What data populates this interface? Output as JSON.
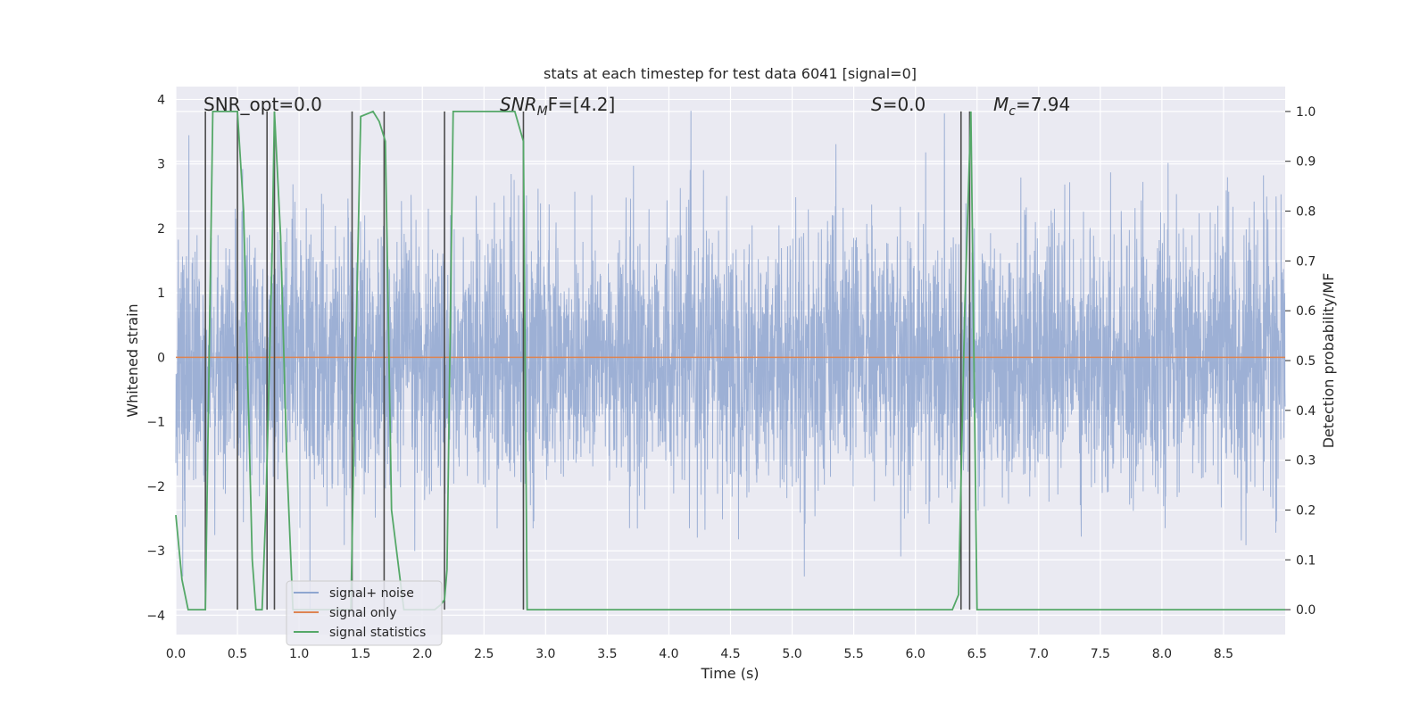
{
  "chart_data": {
    "type": "line",
    "title": "stats at each timestep for test data 6041 [signal=0]",
    "xlabel": "Time (s)",
    "ylabel_left": "Whitened strain",
    "ylabel_right": "Detection probability/MF",
    "xlim": [
      0.0,
      9.0
    ],
    "ylim_left": [
      -4.3,
      4.2
    ],
    "ylim_right": [
      -0.05,
      1.05
    ],
    "x_ticks": [
      "0.0",
      "0.5",
      "1.0",
      "1.5",
      "2.0",
      "2.5",
      "3.0",
      "3.5",
      "4.0",
      "4.5",
      "5.0",
      "5.5",
      "6.0",
      "6.5",
      "7.0",
      "7.5",
      "8.0",
      "8.5"
    ],
    "x_tick_values": [
      0.0,
      0.5,
      1.0,
      1.5,
      2.0,
      2.5,
      3.0,
      3.5,
      4.0,
      4.5,
      5.0,
      5.5,
      6.0,
      6.5,
      7.0,
      7.5,
      8.0,
      8.5
    ],
    "left_ticks": [
      "4",
      "3",
      "2",
      "1",
      "0",
      "−1",
      "−2",
      "−3",
      "−4"
    ],
    "left_tick_values": [
      4,
      3,
      2,
      1,
      0,
      -1,
      -2,
      -3,
      -4
    ],
    "right_ticks": [
      "1.0",
      "0.9",
      "0.8",
      "0.7",
      "0.6",
      "0.5",
      "0.4",
      "0.3",
      "0.2",
      "0.1",
      "0.0"
    ],
    "right_tick_values": [
      1.0,
      0.9,
      0.8,
      0.7,
      0.6,
      0.5,
      0.4,
      0.3,
      0.2,
      0.1,
      0.0
    ],
    "annotations": {
      "snr_opt": "SNR_opt=0.0",
      "snr_mf_main": "SNR",
      "snr_mf_sub": "M",
      "snr_mf_rest": "F=[4.2]",
      "s_main": "S",
      "s_rest": "=0.0",
      "mc_main": "M",
      "mc_sub": "c",
      "mc_rest": "=7.94"
    },
    "legend": {
      "position": "lower-left",
      "entries": [
        {
          "label": "signal+ noise",
          "color": "#8fa6d0"
        },
        {
          "label": "signal only",
          "color": "#dd8452"
        },
        {
          "label": "signal statistics",
          "color": "#55a868"
        }
      ]
    },
    "series": [
      {
        "name": "signal+ noise",
        "axis": "left",
        "color": "#8fa6d0",
        "generated": "whitened noise, std ~1.0, n=4500 samples over 0–9 s"
      },
      {
        "name": "signal only",
        "axis": "left",
        "color": "#dd8452",
        "x": [
          0.0,
          9.0
        ],
        "y": [
          0.0,
          0.0
        ]
      },
      {
        "name": "signal statistics",
        "axis": "right",
        "color": "#55a868",
        "x": [
          0.0,
          0.05,
          0.1,
          0.2,
          0.24,
          0.3,
          0.35,
          0.45,
          0.5,
          0.55,
          0.62,
          0.65,
          0.7,
          0.73,
          0.78,
          0.8,
          0.85,
          0.9,
          0.95,
          1.0,
          1.05,
          1.15,
          1.25,
          1.3,
          1.35,
          1.42,
          1.45,
          1.5,
          1.6,
          1.65,
          1.7,
          1.75,
          1.85,
          2.0,
          2.1,
          2.15,
          2.18,
          2.2,
          2.25,
          2.3,
          2.5,
          2.7,
          2.75,
          2.82,
          2.85,
          2.9,
          3.0,
          3.5,
          4.0,
          4.5,
          5.0,
          5.5,
          6.0,
          6.3,
          6.35,
          6.4,
          6.45,
          6.5,
          6.55,
          7.0,
          8.0,
          9.0
        ],
        "y": [
          0.19,
          0.06,
          0.0,
          0.0,
          0.0,
          1.0,
          1.0,
          1.0,
          1.0,
          0.8,
          0.1,
          0.0,
          0.0,
          0.2,
          0.7,
          1.0,
          0.75,
          0.3,
          0.0,
          0.0,
          0.0,
          0.0,
          0.0,
          0.0,
          0.0,
          0.0,
          0.4,
          0.99,
          1.0,
          0.98,
          0.94,
          0.2,
          0.0,
          0.0,
          0.0,
          0.01,
          0.02,
          0.08,
          1.0,
          1.0,
          1.0,
          1.0,
          1.0,
          0.94,
          0.0,
          0.0,
          0.0,
          0.0,
          0.0,
          0.0,
          0.0,
          0.0,
          0.0,
          0.0,
          0.03,
          0.6,
          1.0,
          0.0,
          0.0,
          0.0,
          0.0,
          0.0
        ]
      }
    ],
    "vertical_markers": {
      "color": "#4c4c4c",
      "x": [
        0.24,
        0.5,
        0.74,
        0.8,
        1.43,
        1.69,
        2.18,
        2.82,
        6.37,
        6.44
      ]
    }
  }
}
